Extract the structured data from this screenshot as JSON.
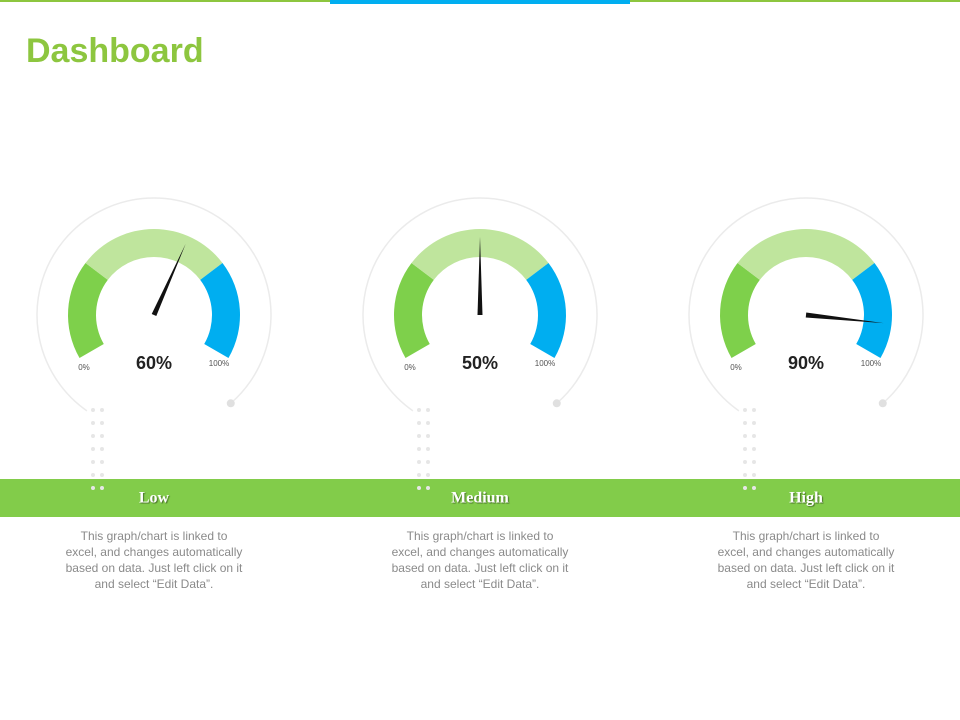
{
  "title": "Dashboard",
  "chart_data": [
    {
      "type": "gauge",
      "title": "Low",
      "values": [
        60
      ],
      "value_labels": [
        "60%"
      ],
      "ylim": [
        0,
        100
      ],
      "yticks": [
        {
          "value": 0,
          "label": "0%"
        },
        {
          "value": 100,
          "label": "100%"
        }
      ],
      "bands": {
        "values": [
          28,
          44,
          28
        ],
        "colors": [
          "#7ed04b",
          "#bfe59d",
          "#00aef0"
        ]
      },
      "description": [
        "This graph/chart is linked to",
        "excel, and changes automatically",
        "based on data. Just left click on it",
        "and select “Edit Data”."
      ]
    },
    {
      "type": "gauge",
      "title": "Medium",
      "values": [
        50
      ],
      "value_labels": [
        "50%"
      ],
      "ylim": [
        0,
        100
      ],
      "yticks": [
        {
          "value": 0,
          "label": "0%"
        },
        {
          "value": 100,
          "label": "100%"
        }
      ],
      "bands": {
        "values": [
          28,
          44,
          28
        ],
        "colors": [
          "#7ed04b",
          "#bfe59d",
          "#00aef0"
        ]
      },
      "description": [
        "This graph/chart is linked to",
        "excel, and changes automatically",
        "based on data. Just left click on it",
        "and select “Edit Data”."
      ]
    },
    {
      "type": "gauge",
      "title": "High",
      "values": [
        90
      ],
      "value_labels": [
        "90%"
      ],
      "ylim": [
        0,
        100
      ],
      "yticks": [
        {
          "value": 0,
          "label": "0%"
        },
        {
          "value": 100,
          "label": "100%"
        }
      ],
      "bands": {
        "values": [
          28,
          44,
          28
        ],
        "colors": [
          "#7ed04b",
          "#bfe59d",
          "#00aef0"
        ]
      },
      "description": [
        "This graph/chart is linked to",
        "excel, and changes automatically",
        "based on data. Just left click on it",
        "and select “Edit Data”."
      ]
    }
  ]
}
